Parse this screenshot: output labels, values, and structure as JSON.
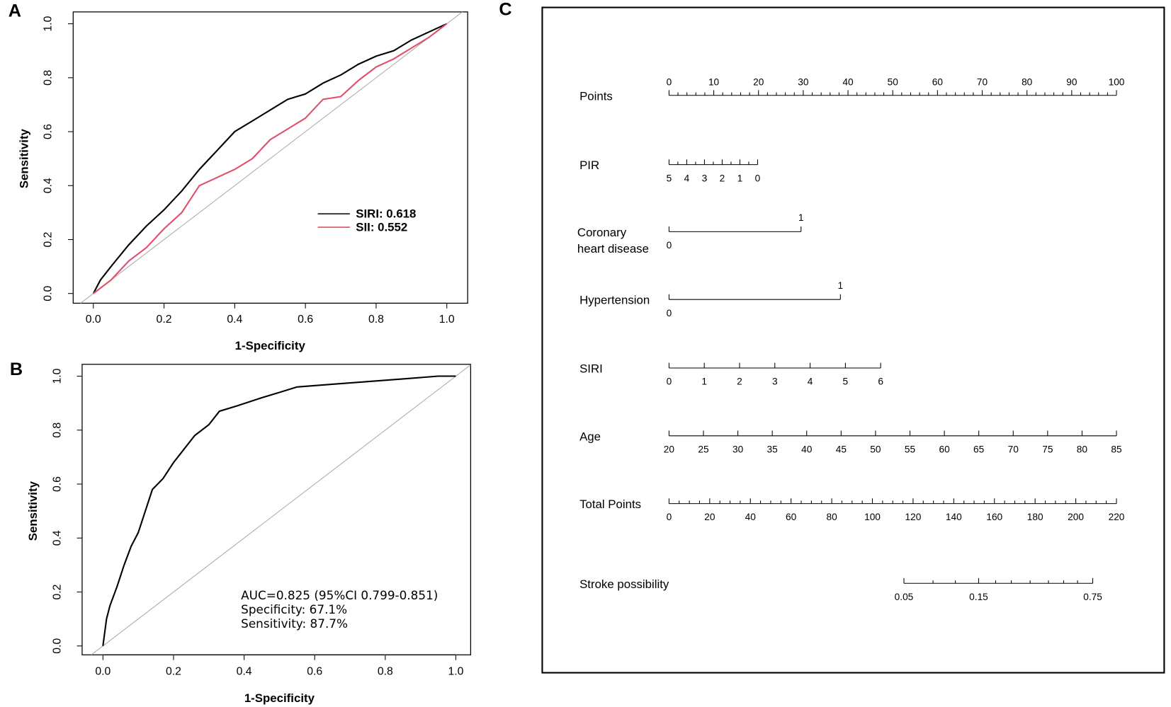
{
  "chart_data": [
    {
      "type": "line",
      "panel": "A",
      "xlabel": "1-Specificity",
      "ylabel": "Sensitivity",
      "xlim": [
        -0.057,
        1.059
      ],
      "ylim": [
        -0.036,
        1.044
      ],
      "xticks": [
        {
          "value": 0,
          "label": "0.0"
        },
        0.2,
        0.4,
        0.6,
        0.8,
        {
          "value": 1,
          "label": "1.0"
        }
      ],
      "yticks": [
        {
          "value": 0,
          "label": "0.0"
        },
        0.2,
        0.4,
        0.6,
        0.8,
        {
          "value": 1,
          "label": "1.0"
        }
      ],
      "legend": "lower right",
      "series": [
        {
          "name": "SIRI: 0.618",
          "color": "#000000",
          "x": [
            0,
            0.02,
            0.05,
            0.1,
            0.15,
            0.2,
            0.25,
            0.3,
            0.35,
            0.4,
            0.45,
            0.5,
            0.55,
            0.6,
            0.65,
            0.7,
            0.75,
            0.8,
            0.85,
            0.9,
            0.95,
            1
          ],
          "values": [
            0,
            0.05,
            0.1,
            0.18,
            0.25,
            0.31,
            0.38,
            0.46,
            0.53,
            0.6,
            0.64,
            0.68,
            0.72,
            0.74,
            0.78,
            0.81,
            0.85,
            0.88,
            0.9,
            0.94,
            0.97,
            1
          ]
        },
        {
          "name": "SII: 0.552",
          "color": "#e0506a",
          "x": [
            0,
            0.05,
            0.1,
            0.15,
            0.2,
            0.25,
            0.3,
            0.35,
            0.4,
            0.45,
            0.5,
            0.55,
            0.6,
            0.65,
            0.7,
            0.75,
            0.8,
            0.85,
            0.9,
            0.95,
            1
          ],
          "values": [
            0,
            0.05,
            0.12,
            0.17,
            0.24,
            0.3,
            0.4,
            0.43,
            0.46,
            0.5,
            0.57,
            0.61,
            0.65,
            0.72,
            0.73,
            0.79,
            0.84,
            0.87,
            0.91,
            0.95,
            1
          ]
        }
      ]
    },
    {
      "type": "line",
      "panel": "B",
      "xlabel": "1-Specificity",
      "ylabel": "Sensitivity",
      "xlim": [
        -0.059,
        1.042
      ],
      "ylim": [
        -0.033,
        1.044
      ],
      "xticks": [
        {
          "value": 0,
          "label": "0.0"
        },
        0.2,
        0.4,
        0.6,
        0.8,
        {
          "value": 1,
          "label": "1.0"
        }
      ],
      "yticks": [
        {
          "value": 0,
          "label": "0.0"
        },
        0.2,
        0.4,
        0.6,
        0.8,
        {
          "value": 1,
          "label": "1.0"
        }
      ],
      "annotations": [
        "AUC=0.825 (95%CI 0.799-0.851)",
        "Specificity: 67.1%",
        "Sensitivity: 87.7%"
      ],
      "series": [
        {
          "color": "#000000",
          "x": [
            0,
            0.01,
            0.02,
            0.04,
            0.06,
            0.08,
            0.1,
            0.12,
            0.14,
            0.17,
            0.2,
            0.23,
            0.26,
            0.3,
            0.33,
            0.38,
            0.45,
            0.5,
            0.55,
            0.65,
            0.75,
            0.85,
            0.95,
            1
          ],
          "values": [
            0,
            0.1,
            0.15,
            0.22,
            0.3,
            0.37,
            0.42,
            0.5,
            0.58,
            0.62,
            0.68,
            0.73,
            0.78,
            0.82,
            0.87,
            0.89,
            0.92,
            0.94,
            0.96,
            0.97,
            0.98,
            0.99,
            1,
            1
          ]
        }
      ]
    },
    {
      "type": "nomogram",
      "panel": "C",
      "rows": [
        {
          "label": [
            "Points"
          ],
          "ticks": [
            0,
            10,
            20,
            30,
            40,
            50,
            60,
            70,
            80,
            90,
            100
          ],
          "minor": [
            2,
            4,
            6,
            8,
            12,
            14,
            16,
            18,
            22,
            24,
            26,
            28,
            32,
            34,
            36,
            38,
            42,
            44,
            46,
            48,
            52,
            54,
            56,
            58,
            62,
            64,
            66,
            68,
            72,
            74,
            76,
            78,
            82,
            84,
            86,
            88,
            92,
            94,
            96,
            98
          ],
          "lim": [
            0,
            100
          ],
          "points": [
            0,
            100
          ],
          "tick_side": "above"
        },
        {
          "label": [
            "PIR"
          ],
          "ticks": [
            5,
            4,
            3,
            2,
            1,
            0
          ],
          "minor": [
            4.5,
            3.5,
            2.5,
            1.5,
            0.5
          ],
          "lim": [
            5,
            0
          ],
          "points": [
            0,
            19.8
          ]
        },
        {
          "label": [
            "Coronary",
            "heart disease"
          ],
          "ticks": [
            0,
            1
          ],
          "lim": [
            0,
            1
          ],
          "points": [
            0,
            29.5
          ],
          "binary": true
        },
        {
          "label": [
            "Hypertension"
          ],
          "ticks": [
            0,
            1
          ],
          "lim": [
            0,
            1
          ],
          "points": [
            0,
            38.3
          ],
          "binary": true
        },
        {
          "label": [
            "SIRI"
          ],
          "ticks": [
            0,
            1,
            2,
            3,
            4,
            5,
            6
          ],
          "lim": [
            0,
            6
          ],
          "points": [
            0,
            47.3
          ]
        },
        {
          "label": [
            "Age"
          ],
          "ticks": [
            20,
            25,
            30,
            35,
            40,
            45,
            50,
            55,
            60,
            65,
            70,
            75,
            80,
            85
          ],
          "lim": [
            20,
            85
          ],
          "points": [
            0,
            100
          ]
        },
        {
          "label": [
            "Total Points"
          ],
          "ticks": [
            0,
            20,
            40,
            60,
            80,
            100,
            120,
            140,
            160,
            180,
            200,
            220
          ],
          "minor": [
            5,
            10,
            15,
            25,
            30,
            35,
            45,
            50,
            55,
            65,
            70,
            75,
            85,
            90,
            95,
            105,
            110,
            115,
            125,
            130,
            135,
            145,
            150,
            155,
            165,
            170,
            175,
            185,
            190,
            195,
            205,
            210,
            215
          ],
          "lim": [
            0,
            220
          ],
          "points": [
            0,
            100
          ]
        },
        {
          "label": [
            "Stroke possibility"
          ],
          "ticks": [
            0.05,
            0.15,
            0.75
          ],
          "at": [
            52.5,
            69.2,
            94.7
          ],
          "minor_at": [
            59,
            64,
            73,
            76.5,
            80.7,
            84.8,
            88.2,
            91.3
          ]
        }
      ]
    }
  ]
}
